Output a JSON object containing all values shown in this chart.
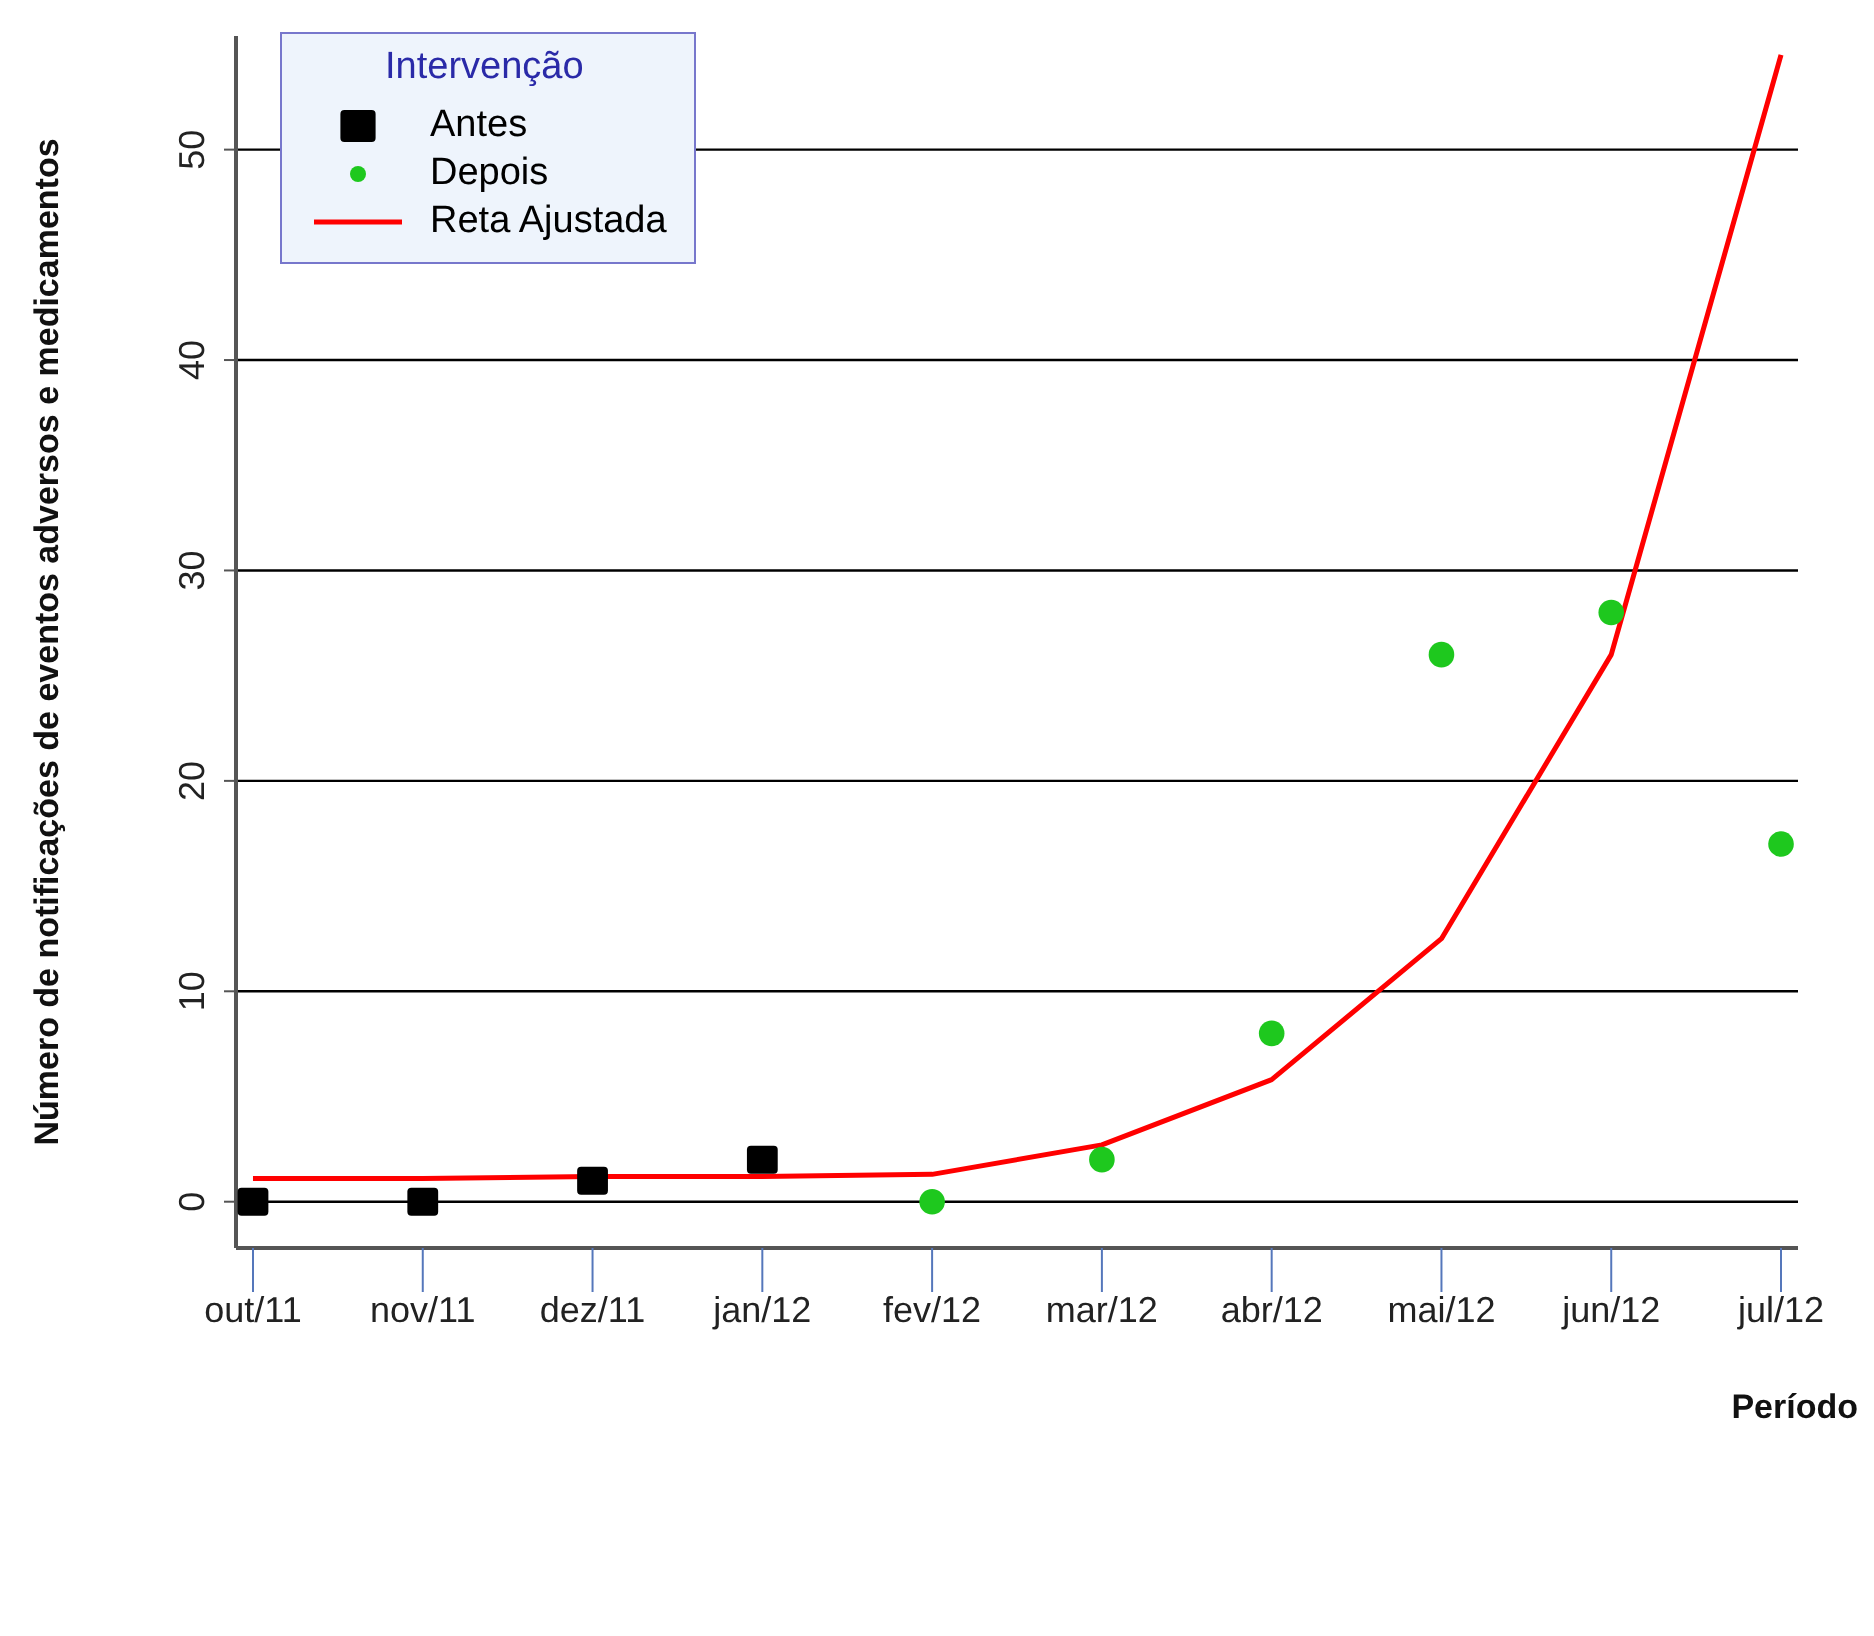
{
  "chart_data": {
    "type": "scatter",
    "xlabel": "Período",
    "ylabel": "Número de notificações de eventos adversos e medicamentos",
    "legend_title": "Intervenção",
    "categories": [
      "out/11",
      "nov/11",
      "dez/11",
      "jan/12",
      "fev/12",
      "mar/12",
      "abr/12",
      "mai/12",
      "jun/12",
      "jul/12"
    ],
    "series": [
      {
        "name": "Antes",
        "marker": "square",
        "color": "#000000",
        "values": [
          0,
          0,
          1,
          2,
          null,
          null,
          null,
          null,
          null,
          null
        ]
      },
      {
        "name": "Depois",
        "marker": "circle",
        "color": "#1ec81e",
        "values": [
          null,
          null,
          null,
          null,
          0,
          2,
          8,
          26,
          28,
          17
        ]
      },
      {
        "name": "Reta Ajustada",
        "type": "line",
        "marker": "none",
        "color": "#ff0000",
        "values": [
          1.1,
          1.1,
          1.2,
          1.2,
          1.3,
          2.7,
          5.8,
          12.5,
          26,
          54.5
        ]
      }
    ],
    "ylim": [
      -2.2,
      55.4
    ],
    "yticks": [
      0,
      10,
      20,
      30,
      40,
      50
    ],
    "grid": "y",
    "legend": "top left"
  }
}
